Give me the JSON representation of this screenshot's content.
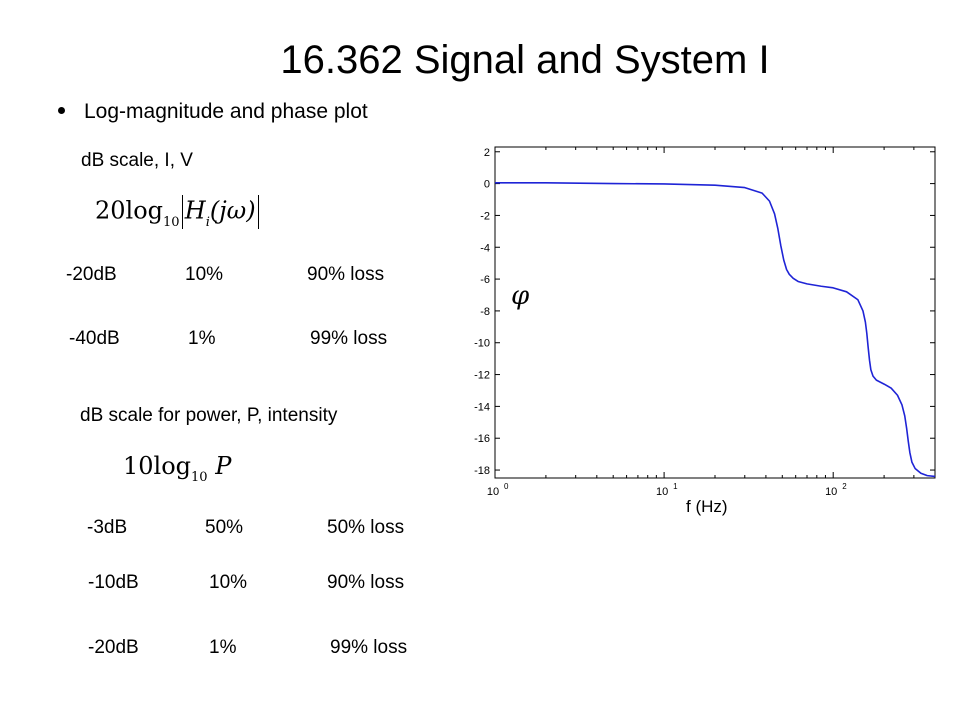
{
  "slide": {
    "title": "16.362 Signal and System I",
    "bullet": "Log-magnitude and phase plot",
    "voltage_heading": "dB scale, I, V",
    "voltage_formula": {
      "coef": "20log",
      "base": "10",
      "h": "H",
      "hsub": "i",
      "arg": "(jω)"
    },
    "voltage_rows": [
      {
        "db": "-20dB",
        "pct": "10%",
        "loss": "90% loss"
      },
      {
        "db": "-40dB",
        "pct": "1%",
        "loss": "99% loss"
      }
    ],
    "power_heading": "dB scale for power, P, intensity",
    "power_formula": {
      "coef": "10log",
      "base": "10",
      "var": "P"
    },
    "power_rows": [
      {
        "db": "-3dB",
        "pct": "50%",
        "loss": "50% loss"
      },
      {
        "db": "-10dB",
        "pct": "10%",
        "loss": "90% loss"
      },
      {
        "db": "-20dB",
        "pct": "1%",
        "loss": "99% loss"
      }
    ]
  },
  "chart_data": {
    "type": "line",
    "xscale": "log",
    "xlim": [
      1,
      400
    ],
    "ylim": [
      -18.5,
      2.3
    ],
    "xticks": [
      1,
      10,
      100
    ],
    "xtick_labels": [
      [
        "10",
        "0"
      ],
      [
        "10",
        "1"
      ],
      [
        "10",
        "2"
      ]
    ],
    "yticks": [
      2,
      0,
      -2,
      -4,
      -6,
      -8,
      -10,
      -12,
      -14,
      -16,
      -18
    ],
    "ylabel": "φ",
    "xlabel": "f (Hz)",
    "grid": false,
    "line_color": "#1f24d6",
    "series": [
      {
        "x": [
          1,
          2,
          5,
          10,
          20,
          30,
          38,
          42,
          45,
          47,
          49,
          51,
          53,
          55,
          58,
          62,
          70,
          85,
          100,
          120,
          140,
          150,
          155,
          158,
          161,
          164,
          167,
          172,
          180,
          200,
          220,
          240,
          255,
          265,
          272,
          278,
          284,
          292,
          305,
          330,
          360,
          400
        ],
        "y": [
          0.05,
          0.05,
          0.0,
          -0.02,
          -0.1,
          -0.25,
          -0.6,
          -1.1,
          -1.9,
          -2.8,
          -3.9,
          -4.8,
          -5.4,
          -5.7,
          -5.95,
          -6.15,
          -6.3,
          -6.45,
          -6.55,
          -6.8,
          -7.3,
          -8.0,
          -8.7,
          -9.4,
          -10.3,
          -11.1,
          -11.7,
          -12.1,
          -12.35,
          -12.6,
          -12.85,
          -13.3,
          -13.9,
          -14.6,
          -15.4,
          -16.2,
          -16.9,
          -17.5,
          -17.9,
          -18.2,
          -18.35,
          -18.4
        ]
      }
    ]
  }
}
